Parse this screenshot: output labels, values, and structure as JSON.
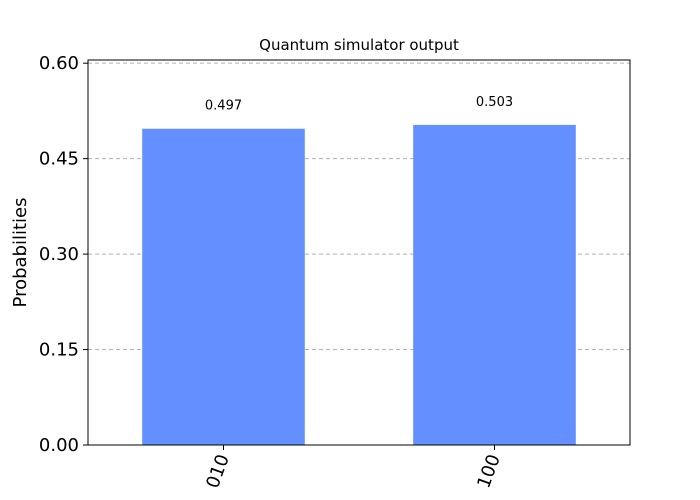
{
  "chart_data": {
    "type": "bar",
    "title": "Quantum simulator output",
    "xlabel": "",
    "ylabel": "Probabilities",
    "categories": [
      "010",
      "100"
    ],
    "values": [
      0.497,
      0.503
    ],
    "data_labels": [
      "0.497",
      "0.503"
    ],
    "yticks": [
      0.0,
      0.15,
      0.3,
      0.45,
      0.6
    ],
    "ytick_labels": [
      "0.00",
      "0.15",
      "0.30",
      "0.45",
      "0.60"
    ],
    "ylim": [
      0,
      0.605
    ],
    "grid": true,
    "bar_color": "#648fff",
    "xtick_rotation": "70 degrees"
  }
}
